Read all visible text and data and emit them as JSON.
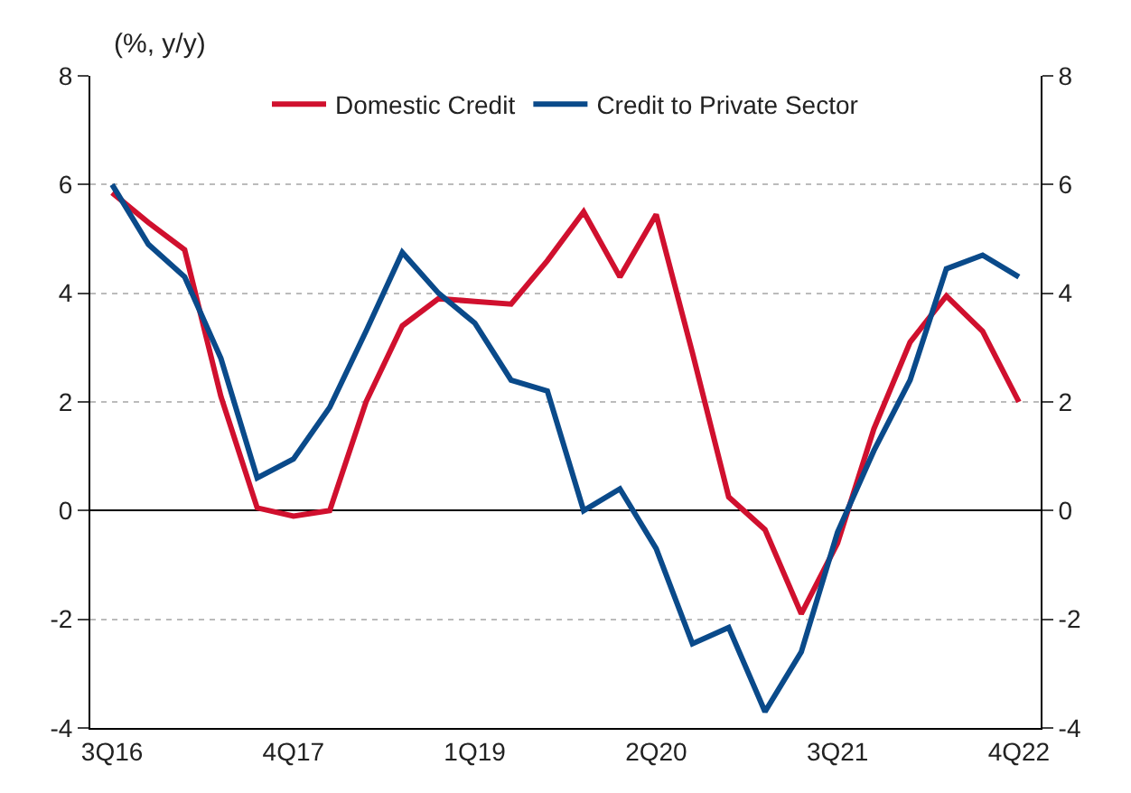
{
  "chart_data": {
    "type": "line",
    "ylabel": "(%, y/y)",
    "categories": [
      "3Q16",
      null,
      null,
      null,
      null,
      "4Q17",
      null,
      null,
      null,
      null,
      "1Q19",
      null,
      null,
      null,
      null,
      "2Q20",
      null,
      null,
      null,
      null,
      "3Q21",
      null,
      null,
      null,
      null,
      "4Q22"
    ],
    "series": [
      {
        "name": "Domestic Credit",
        "color": "#d0102e",
        "values": [
          5.85,
          5.3,
          4.8,
          2.1,
          0.05,
          -0.1,
          0,
          2.0,
          3.4,
          3.9,
          3.85,
          3.8,
          4.6,
          5.5,
          4.3,
          5.45,
          2.9,
          0.25,
          -0.35,
          -1.9,
          -0.6,
          1.5,
          3.1,
          3.95,
          3.3,
          2.0
        ]
      },
      {
        "name": "Credit to Private Sector",
        "color": "#0a4a8a",
        "values": [
          6.0,
          4.9,
          4.3,
          2.8,
          0.6,
          0.95,
          1.9,
          3.3,
          4.75,
          4.0,
          3.45,
          2.4,
          2.2,
          0,
          0.4,
          -0.7,
          -2.45,
          -2.15,
          -3.7,
          -2.6,
          -0.4,
          1.1,
          2.4,
          4.45,
          4.7,
          4.3
        ]
      }
    ],
    "ylim": [
      -4,
      8
    ],
    "yticks": [
      -4,
      -2,
      0,
      2,
      4,
      6,
      8
    ],
    "y2lim": [
      -4,
      8
    ],
    "y2ticks": [
      -4,
      -2,
      0,
      2,
      4,
      6,
      8
    ],
    "grid": "y",
    "legend": "top",
    "line_style": "solid",
    "marker": "none"
  }
}
